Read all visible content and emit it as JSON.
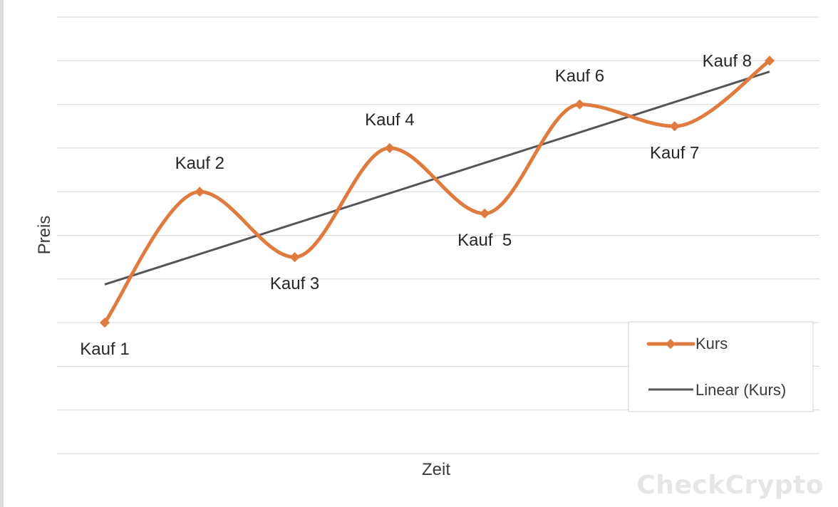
{
  "chart_data": {
    "type": "line",
    "title": "",
    "xlabel": "Zeit",
    "ylabel": "Preis",
    "categories": [
      "Kauf 1",
      "Kauf 2",
      "Kauf 3",
      "Kauf 4",
      "Kauf  5",
      "Kauf 6",
      "Kauf 7",
      "Kauf 8"
    ],
    "series": [
      {
        "name": "Kurs",
        "values": [
          3,
          6,
          4.5,
          7,
          5.5,
          8,
          7.5,
          9
        ],
        "color": "#e07b3f",
        "marker": "diamond",
        "smooth": true
      },
      {
        "name": "Linear (Kurs)",
        "type": "trendline-linear",
        "color": "#555555"
      }
    ],
    "point_labels": [
      "Kauf 1",
      "Kauf 2",
      "Kauf 3",
      "Kauf 4",
      "Kauf  5",
      "Kauf 6",
      "Kauf 7",
      "Kauf 8"
    ],
    "label_positions": [
      "below",
      "above",
      "below",
      "above",
      "below",
      "above",
      "below",
      "left"
    ],
    "ylim": [
      0,
      10
    ],
    "grid": true,
    "legend": "bottom-right",
    "show_tick_labels": false
  },
  "watermark": "CheckCrypto"
}
